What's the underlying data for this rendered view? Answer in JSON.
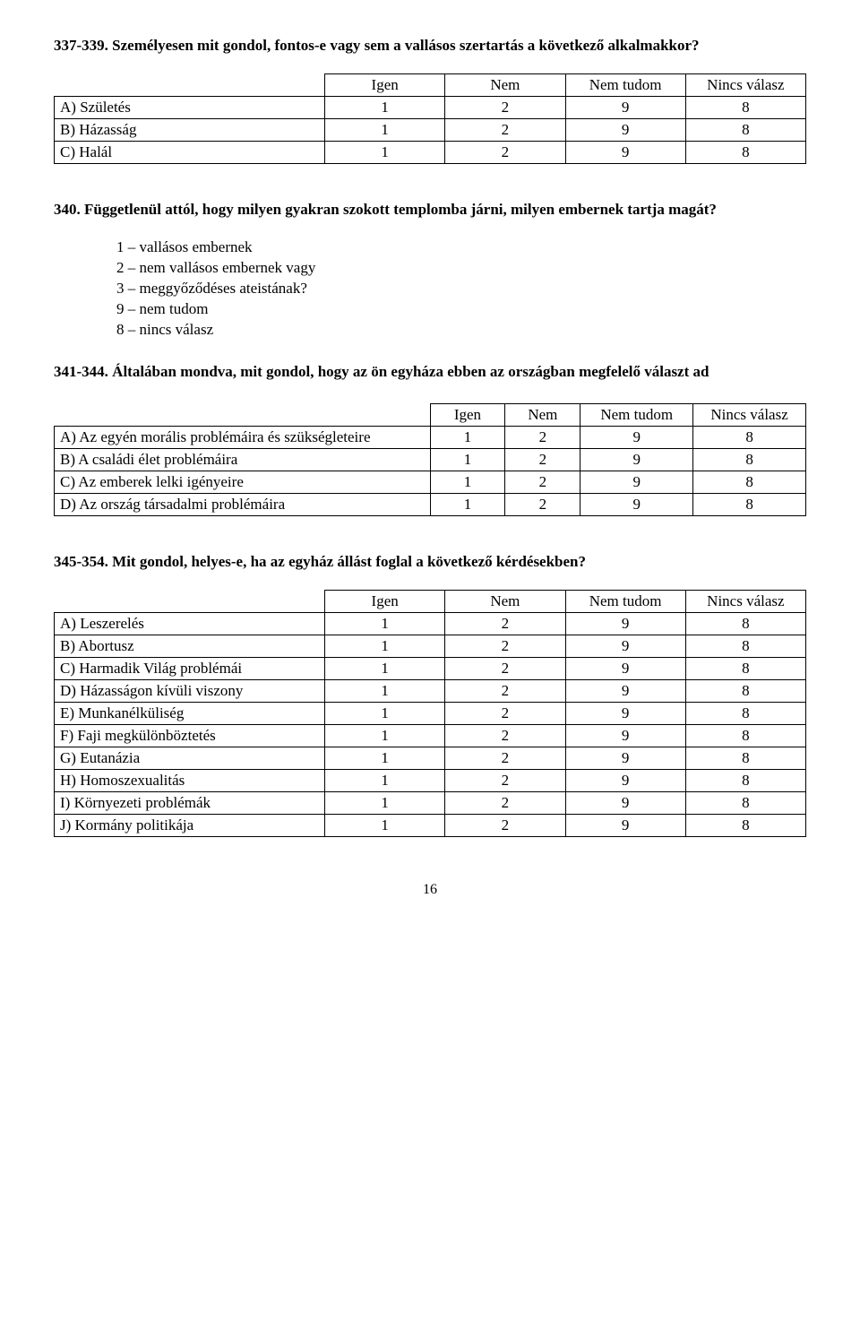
{
  "q337": {
    "heading": "337-339. Személyesen mit gondol, fontos-e vagy sem a vallásos szertartás a következő alkalmakkor?",
    "table": {
      "columns": [
        "Igen",
        "Nem",
        "Nem tudom",
        "Nincs válasz"
      ],
      "col_widths": [
        "36%",
        "16%",
        "16%",
        "16%",
        "16%"
      ],
      "rows": [
        {
          "label": "A) Születés",
          "cells": [
            "1",
            "2",
            "9",
            "8"
          ]
        },
        {
          "label": "B) Házasság",
          "cells": [
            "1",
            "2",
            "9",
            "8"
          ]
        },
        {
          "label": "C) Halál",
          "cells": [
            "1",
            "2",
            "9",
            "8"
          ]
        }
      ]
    }
  },
  "q340": {
    "heading": "340. Függetlenül attól, hogy milyen gyakran szokott templomba járni, milyen embernek tartja magát?",
    "options": [
      "1 – vallásos embernek",
      "2 – nem vallásos embernek vagy",
      "3 – meggyőződéses ateistának?",
      "9 – nem tudom",
      "8 – nincs válasz"
    ]
  },
  "q341": {
    "heading": "341-344. Általában mondva, mit gondol, hogy az ön egyháza ebben az országban megfelelő választ ad",
    "table": {
      "columns": [
        "Igen",
        "Nem",
        "Nem tudom",
        "Nincs válasz"
      ],
      "col_widths": [
        "50%",
        "10%",
        "10%",
        "15%",
        "15%"
      ],
      "rows": [
        {
          "label": "A) Az egyén morális problémáira és szükségleteire",
          "cells": [
            "1",
            "2",
            "9",
            "8"
          ]
        },
        {
          "label": "B) A családi élet problémáira",
          "cells": [
            "1",
            "2",
            "9",
            "8"
          ]
        },
        {
          "label": "C) Az emberek lelki igényeire",
          "cells": [
            "1",
            "2",
            "9",
            "8"
          ]
        },
        {
          "label": "D) Az ország társadalmi problémáira",
          "cells": [
            "1",
            "2",
            "9",
            "8"
          ]
        }
      ]
    }
  },
  "q345": {
    "heading": "345-354. Mit gondol, helyes-e, ha az egyház állást foglal a következő kérdésekben?",
    "table": {
      "columns": [
        "Igen",
        "Nem",
        "Nem tudom",
        "Nincs válasz"
      ],
      "col_widths": [
        "36%",
        "16%",
        "16%",
        "16%",
        "16%"
      ],
      "rows": [
        {
          "label": "A) Leszerelés",
          "cells": [
            "1",
            "2",
            "9",
            "8"
          ]
        },
        {
          "label": "B) Abortusz",
          "cells": [
            "1",
            "2",
            "9",
            "8"
          ]
        },
        {
          "label": "C) Harmadik Világ problémái",
          "cells": [
            "1",
            "2",
            "9",
            "8"
          ]
        },
        {
          "label": "D) Házasságon kívüli viszony",
          "cells": [
            "1",
            "2",
            "9",
            "8"
          ]
        },
        {
          "label": "E) Munkanélküliség",
          "cells": [
            "1",
            "2",
            "9",
            "8"
          ]
        },
        {
          "label": "F) Faji megkülönböztetés",
          "cells": [
            "1",
            "2",
            "9",
            "8"
          ]
        },
        {
          "label": "G) Eutanázia",
          "cells": [
            "1",
            "2",
            "9",
            "8"
          ]
        },
        {
          "label": "H) Homoszexualitás",
          "cells": [
            "1",
            "2",
            "9",
            "8"
          ]
        },
        {
          "label": "I) Környezeti problémák",
          "cells": [
            "1",
            "2",
            "9",
            "8"
          ]
        },
        {
          "label": "J) Kormány politikája",
          "cells": [
            "1",
            "2",
            "9",
            "8"
          ]
        }
      ]
    }
  },
  "page_number": "16"
}
